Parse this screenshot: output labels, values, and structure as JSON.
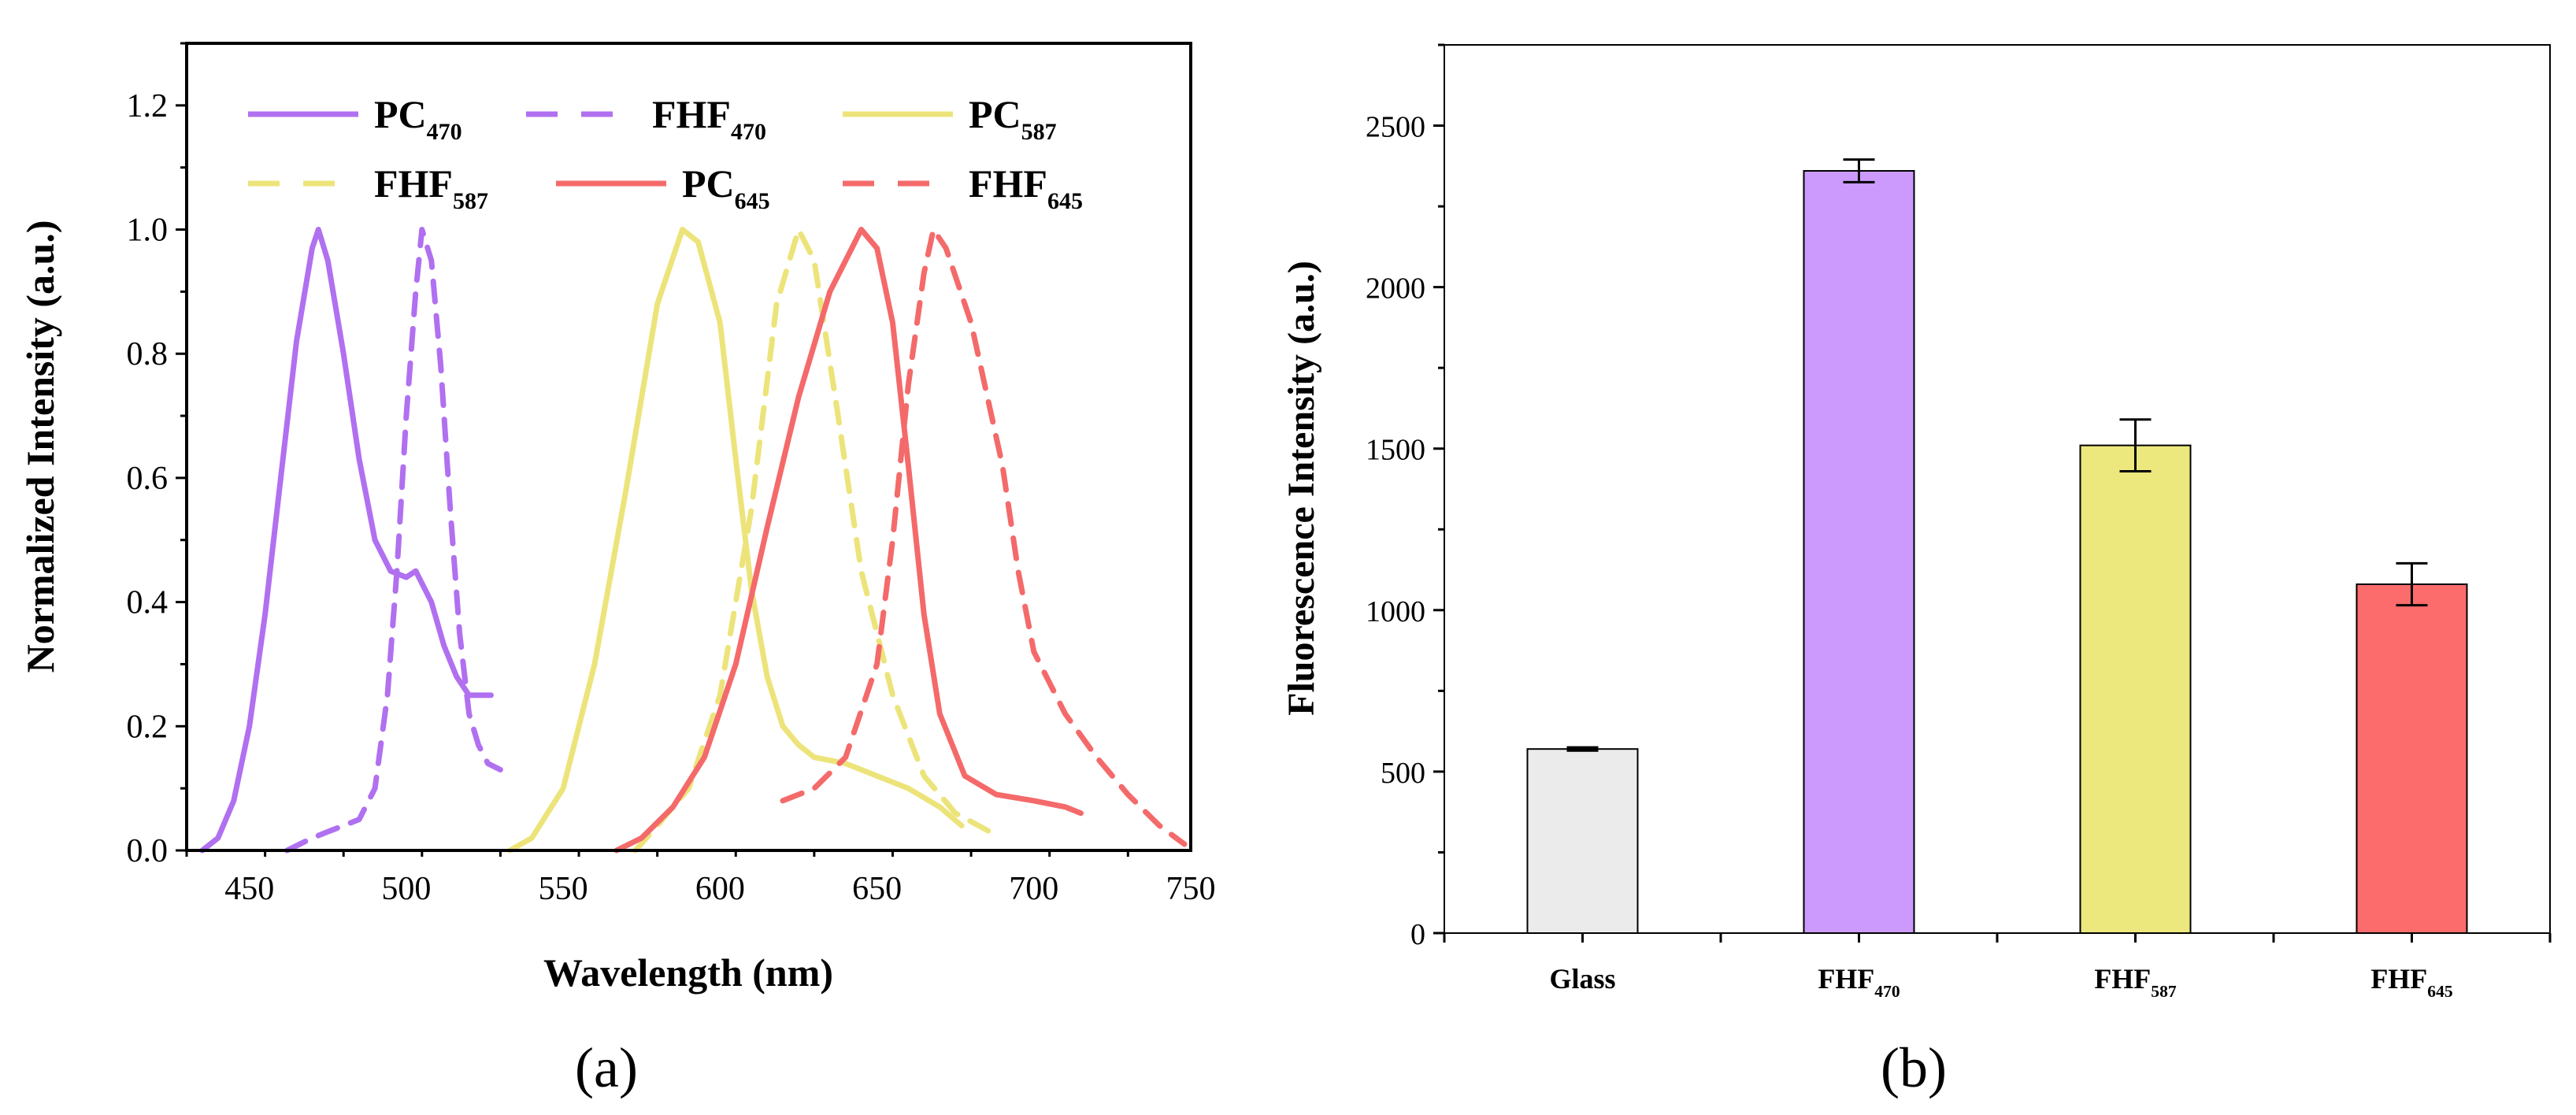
{
  "chart_data": [
    {
      "panel_label": "(a)",
      "type": "line",
      "xlabel": "Wavelength (nm)",
      "ylabel": "Normalized Intensity (a.u.)",
      "xlim": [
        430,
        750
      ],
      "ylim": [
        0,
        1.3
      ],
      "xticks": [
        450,
        500,
        550,
        600,
        650,
        700,
        750
      ],
      "yticks": [
        "0.0",
        "0.2",
        "0.4",
        "0.6",
        "0.8",
        "1.0",
        "1.2"
      ],
      "legend_position": "top",
      "series": [
        {
          "name": "PC",
          "sub": "470",
          "color": "#b070f0",
          "dash": false,
          "points": [
            [
              435,
              0.0
            ],
            [
              440,
              0.02
            ],
            [
              445,
              0.08
            ],
            [
              450,
              0.2
            ],
            [
              455,
              0.38
            ],
            [
              460,
              0.6
            ],
            [
              465,
              0.82
            ],
            [
              470,
              0.97
            ],
            [
              472,
              1.0
            ],
            [
              475,
              0.95
            ],
            [
              480,
              0.8
            ],
            [
              485,
              0.63
            ],
            [
              490,
              0.5
            ],
            [
              495,
              0.45
            ],
            [
              500,
              0.44
            ],
            [
              503,
              0.45
            ],
            [
              508,
              0.4
            ],
            [
              512,
              0.33
            ],
            [
              516,
              0.28
            ],
            [
              520,
              0.25
            ],
            [
              525,
              0.25
            ],
            [
              527,
              0.25
            ]
          ]
        },
        {
          "name": "FHF",
          "sub": "470",
          "color": "#b070f0",
          "dash": true,
          "points": [
            [
              462,
              0.0
            ],
            [
              470,
              0.02
            ],
            [
              475,
              0.03
            ],
            [
              480,
              0.04
            ],
            [
              485,
              0.05
            ],
            [
              490,
              0.1
            ],
            [
              494,
              0.25
            ],
            [
              497,
              0.45
            ],
            [
              500,
              0.7
            ],
            [
              503,
              0.9
            ],
            [
              505,
              1.0
            ],
            [
              508,
              0.95
            ],
            [
              511,
              0.78
            ],
            [
              514,
              0.55
            ],
            [
              517,
              0.35
            ],
            [
              520,
              0.22
            ],
            [
              523,
              0.17
            ],
            [
              526,
              0.14
            ],
            [
              530,
              0.13
            ]
          ]
        },
        {
          "name": "PC",
          "sub": "587",
          "color": "#ece47a",
          "dash": false,
          "points": [
            [
              533,
              0.0
            ],
            [
              540,
              0.02
            ],
            [
              550,
              0.1
            ],
            [
              560,
              0.3
            ],
            [
              570,
              0.58
            ],
            [
              580,
              0.88
            ],
            [
              588,
              1.0
            ],
            [
              593,
              0.98
            ],
            [
              600,
              0.85
            ],
            [
              605,
              0.63
            ],
            [
              610,
              0.42
            ],
            [
              615,
              0.28
            ],
            [
              620,
              0.2
            ],
            [
              625,
              0.17
            ],
            [
              630,
              0.15
            ],
            [
              640,
              0.14
            ],
            [
              650,
              0.12
            ],
            [
              660,
              0.1
            ],
            [
              670,
              0.07
            ],
            [
              677,
              0.04
            ]
          ]
        },
        {
          "name": "FHF",
          "sub": "587",
          "color": "#ece47a",
          "dash": true,
          "points": [
            [
              573,
              0.0
            ],
            [
              580,
              0.04
            ],
            [
              590,
              0.1
            ],
            [
              600,
              0.25
            ],
            [
              610,
              0.55
            ],
            [
              618,
              0.88
            ],
            [
              625,
              1.0
            ],
            [
              630,
              0.95
            ],
            [
              637,
              0.72
            ],
            [
              645,
              0.45
            ],
            [
              655,
              0.25
            ],
            [
              665,
              0.12
            ],
            [
              675,
              0.06
            ],
            [
              686,
              0.03
            ]
          ]
        },
        {
          "name": "PC",
          "sub": "645",
          "color": "#f46a6a",
          "dash": false,
          "points": [
            [
              567,
              0.0
            ],
            [
              575,
              0.02
            ],
            [
              585,
              0.07
            ],
            [
              595,
              0.15
            ],
            [
              605,
              0.3
            ],
            [
              615,
              0.52
            ],
            [
              625,
              0.73
            ],
            [
              635,
              0.9
            ],
            [
              645,
              1.0
            ],
            [
              650,
              0.97
            ],
            [
              655,
              0.85
            ],
            [
              660,
              0.62
            ],
            [
              665,
              0.38
            ],
            [
              670,
              0.22
            ],
            [
              678,
              0.12
            ],
            [
              688,
              0.09
            ],
            [
              700,
              0.08
            ],
            [
              710,
              0.07
            ],
            [
              715,
              0.06
            ]
          ]
        },
        {
          "name": "FHF",
          "sub": "645",
          "color": "#f46a6a",
          "dash": true,
          "points": [
            [
              620,
              0.08
            ],
            [
              630,
              0.1
            ],
            [
              640,
              0.15
            ],
            [
              650,
              0.3
            ],
            [
              655,
              0.5
            ],
            [
              660,
              0.75
            ],
            [
              665,
              0.93
            ],
            [
              668,
              1.0
            ],
            [
              672,
              0.97
            ],
            [
              680,
              0.85
            ],
            [
              690,
              0.62
            ],
            [
              695,
              0.45
            ],
            [
              700,
              0.32
            ],
            [
              710,
              0.22
            ],
            [
              720,
              0.15
            ],
            [
              730,
              0.09
            ],
            [
              740,
              0.04
            ],
            [
              748,
              0.01
            ]
          ]
        }
      ]
    },
    {
      "panel_label": "(b)",
      "type": "bar",
      "xlabel": "",
      "ylabel": "Fluorescence Intensity (a.u.)",
      "ylim": [
        0,
        2750
      ],
      "yticks": [
        "0",
        "500",
        "1000",
        "1500",
        "2000",
        "2500"
      ],
      "categories": [
        {
          "name": "Glass",
          "sub": ""
        },
        {
          "name": "FHF",
          "sub": "470"
        },
        {
          "name": "FHF",
          "sub": "587"
        },
        {
          "name": "FHF",
          "sub": "645"
        }
      ],
      "values": [
        570,
        2360,
        1510,
        1080
      ],
      "errors": [
        5,
        35,
        80,
        65
      ],
      "colors": [
        "#ebebeb",
        "#cc99fc",
        "#ece87e",
        "#fc6c6c"
      ]
    }
  ]
}
